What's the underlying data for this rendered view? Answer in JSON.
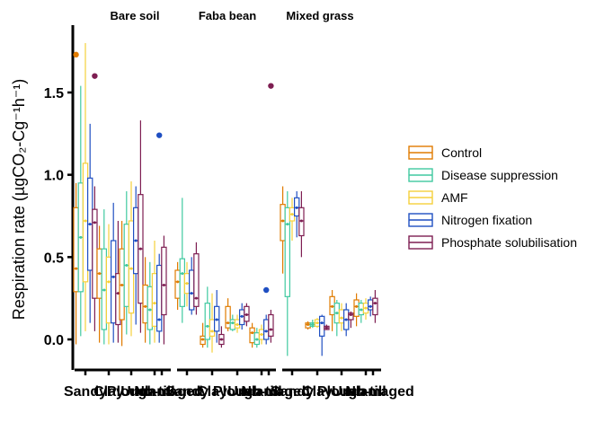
{
  "chart_data": {
    "type": "box",
    "ylabel": "Respiration rate (µgCO₂-Cg⁻¹h⁻¹)",
    "ylim": [
      -0.2,
      1.93
    ],
    "yticks": [
      0.0,
      0.5,
      1.0,
      1.5
    ],
    "ytick_labels": [
      "0.0",
      "0.5",
      "1.0",
      "1.5"
    ],
    "facets": [
      "Bare soil",
      "Faba bean",
      "Mixed grass"
    ],
    "categories": [
      "Sandy",
      "Clay",
      "Plough",
      "No-till",
      "Undamaged"
    ],
    "category_label_text": [
      [
        "Sandy",
        "Clay",
        "Plough",
        "No-till",
        "Undamaged"
      ],
      [
        "Sandy",
        "Clay",
        "Plough",
        "No-till",
        "Undamaged"
      ],
      [
        "Sandy",
        "Clay",
        "Plough",
        "No-till",
        "Undamaged"
      ]
    ],
    "legend_position": "right",
    "series": [
      {
        "name": "Control",
        "color": "#E07B00"
      },
      {
        "name": "Disease suppression",
        "color": "#40C9A0"
      },
      {
        "name": "AMF",
        "color": "#F5D03B"
      },
      {
        "name": "Nitrogen fixation",
        "color": "#1F4FC2"
      },
      {
        "name": "Phosphate solubilisation",
        "color": "#7E1E52"
      }
    ],
    "boxes": [
      [
        [
          {
            "q1": 0.29,
            "med": 0.43,
            "q3": 0.8,
            "lo": -0.03,
            "hi": 0.95,
            "mean": 0.43,
            "out": [
              1.73
            ]
          },
          {
            "q1": 0.29,
            "med": 0.62,
            "q3": 0.95,
            "lo": 0.02,
            "hi": 1.54,
            "mean": 0.62,
            "out": []
          },
          {
            "q1": 0.35,
            "med": 0.72,
            "q3": 1.07,
            "lo": 0.05,
            "hi": 1.8,
            "mean": 0.72,
            "out": []
          },
          {
            "q1": 0.42,
            "med": 0.7,
            "q3": 0.98,
            "lo": 0.1,
            "hi": 1.31,
            "mean": 0.7,
            "out": []
          },
          {
            "q1": 0.25,
            "med": 0.71,
            "q3": 0.79,
            "lo": 0.05,
            "hi": 0.93,
            "mean": 0.71,
            "out": [
              1.6
            ]
          }
        ],
        [
          {
            "q1": 0.25,
            "med": 0.4,
            "q3": 0.55,
            "lo": -0.02,
            "hi": 0.69,
            "mean": 0.4,
            "out": []
          },
          {
            "q1": 0.06,
            "med": 0.3,
            "q3": 0.55,
            "lo": -0.03,
            "hi": 0.79,
            "mean": 0.3,
            "out": []
          },
          {
            "q1": 0.1,
            "med": 0.35,
            "q3": 0.5,
            "lo": -0.03,
            "hi": 0.7,
            "mean": 0.35,
            "out": []
          },
          {
            "q1": 0.1,
            "med": 0.38,
            "q3": 0.6,
            "lo": -0.02,
            "hi": 0.83,
            "mean": 0.38,
            "out": []
          },
          {
            "q1": 0.09,
            "med": 0.28,
            "q3": 0.4,
            "lo": -0.02,
            "hi": 0.72,
            "mean": 0.28,
            "out": []
          }
        ],
        [
          {
            "q1": 0.12,
            "med": 0.33,
            "q3": 0.55,
            "lo": -0.04,
            "hi": 0.72,
            "mean": 0.33,
            "out": []
          },
          {
            "q1": 0.2,
            "med": 0.45,
            "q3": 0.7,
            "lo": 0.03,
            "hi": 0.9,
            "mean": 0.45,
            "out": []
          },
          {
            "q1": 0.16,
            "med": 0.43,
            "q3": 0.72,
            "lo": 0.02,
            "hi": 0.96,
            "mean": 0.43,
            "out": []
          },
          {
            "q1": 0.4,
            "med": 0.6,
            "q3": 0.8,
            "lo": 0.09,
            "hi": 0.93,
            "mean": 0.6,
            "out": []
          },
          {
            "q1": 0.22,
            "med": 0.55,
            "q3": 0.88,
            "lo": 0.04,
            "hi": 1.33,
            "mean": 0.55,
            "out": []
          }
        ],
        [
          {
            "q1": 0.1,
            "med": 0.2,
            "q3": 0.33,
            "lo": -0.02,
            "hi": 0.5,
            "mean": 0.2,
            "out": []
          },
          {
            "q1": 0.06,
            "med": 0.18,
            "q3": 0.32,
            "lo": -0.03,
            "hi": 0.47,
            "mean": 0.18,
            "out": []
          },
          {
            "q1": 0.08,
            "med": 0.22,
            "q3": 0.4,
            "lo": -0.02,
            "hi": 0.6,
            "mean": 0.22,
            "out": []
          },
          {
            "q1": 0.05,
            "med": 0.12,
            "q3": 0.45,
            "lo": -0.02,
            "hi": 0.52,
            "mean": 0.12,
            "out": [
              1.24
            ]
          },
          {
            "q1": 0.15,
            "med": 0.33,
            "q3": 0.56,
            "lo": -0.03,
            "hi": 0.63,
            "mean": 0.33,
            "out": []
          }
        ],
        [
          {
            "q1": 0.0,
            "med": 0.0,
            "q3": 0.0,
            "lo": 0.0,
            "hi": 0.0,
            "mean": 0.0,
            "out": []
          },
          {
            "q1": 0.0,
            "med": 0.0,
            "q3": 0.0,
            "lo": 0.0,
            "hi": 0.0,
            "mean": 0.0,
            "out": []
          },
          {
            "q1": 0.0,
            "med": 0.0,
            "q3": 0.0,
            "lo": 0.0,
            "hi": 0.0,
            "mean": 0.0,
            "out": []
          },
          {
            "q1": 0.0,
            "med": 0.0,
            "q3": 0.0,
            "lo": 0.0,
            "hi": 0.0,
            "mean": 0.0,
            "out": []
          },
          {
            "q1": 0.0,
            "med": 0.0,
            "q3": 0.0,
            "lo": 0.0,
            "hi": 0.0,
            "mean": 0.0,
            "out": []
          }
        ]
      ],
      [
        [
          {
            "q1": 0.25,
            "med": 0.35,
            "q3": 0.42,
            "lo": 0.18,
            "hi": 0.47,
            "mean": 0.35,
            "out": []
          },
          {
            "q1": 0.2,
            "med": 0.4,
            "q3": 0.49,
            "lo": 0.1,
            "hi": 0.86,
            "mean": 0.4,
            "out": []
          },
          {
            "q1": 0.28,
            "med": 0.34,
            "q3": 0.4,
            "lo": 0.2,
            "hi": 0.47,
            "mean": 0.34,
            "out": []
          },
          {
            "q1": 0.18,
            "med": 0.28,
            "q3": 0.42,
            "lo": 0.15,
            "hi": 0.5,
            "mean": 0.28,
            "out": []
          },
          {
            "q1": 0.2,
            "med": 0.25,
            "q3": 0.52,
            "lo": 0.15,
            "hi": 0.59,
            "mean": 0.25,
            "out": []
          }
        ],
        [
          {
            "q1": -0.03,
            "med": 0.0,
            "q3": 0.02,
            "lo": -0.05,
            "hi": 0.1,
            "mean": 0.0,
            "out": []
          },
          {
            "q1": 0.0,
            "med": 0.08,
            "q3": 0.22,
            "lo": -0.05,
            "hi": 0.32,
            "mean": 0.08,
            "out": []
          },
          {
            "q1": 0.02,
            "med": 0.05,
            "q3": 0.12,
            "lo": -0.08,
            "hi": 0.28,
            "mean": 0.05,
            "out": []
          },
          {
            "q1": 0.05,
            "med": 0.12,
            "q3": 0.2,
            "lo": -0.02,
            "hi": 0.3,
            "mean": 0.12,
            "out": []
          },
          {
            "q1": -0.03,
            "med": 0.0,
            "q3": 0.03,
            "lo": -0.05,
            "hi": 0.08,
            "mean": 0.0,
            "out": []
          }
        ],
        [
          {
            "q1": 0.07,
            "med": 0.1,
            "q3": 0.2,
            "lo": 0.05,
            "hi": 0.25,
            "mean": 0.1,
            "out": []
          },
          {
            "q1": 0.06,
            "med": 0.1,
            "q3": 0.12,
            "lo": 0.05,
            "hi": 0.15,
            "mean": 0.1,
            "out": []
          },
          {
            "q1": 0.07,
            "med": 0.09,
            "q3": 0.12,
            "lo": 0.04,
            "hi": 0.15,
            "mean": 0.09,
            "out": []
          },
          {
            "q1": 0.09,
            "med": 0.14,
            "q3": 0.18,
            "lo": 0.06,
            "hi": 0.22,
            "mean": 0.14,
            "out": []
          },
          {
            "q1": 0.11,
            "med": 0.15,
            "q3": 0.2,
            "lo": 0.08,
            "hi": 0.22,
            "mean": 0.15,
            "out": []
          }
        ],
        [
          {
            "q1": -0.02,
            "med": 0.04,
            "q3": 0.07,
            "lo": -0.05,
            "hi": 0.1,
            "mean": 0.04,
            "out": []
          },
          {
            "q1": -0.03,
            "med": 0.0,
            "q3": 0.04,
            "lo": -0.05,
            "hi": 0.07,
            "mean": 0.0,
            "out": []
          },
          {
            "q1": 0.0,
            "med": 0.03,
            "q3": 0.06,
            "lo": -0.03,
            "hi": 0.09,
            "mean": 0.03,
            "out": []
          },
          {
            "q1": 0.0,
            "med": 0.05,
            "q3": 0.12,
            "lo": -0.03,
            "hi": 0.15,
            "mean": 0.05,
            "out": [
              0.3
            ]
          },
          {
            "q1": 0.02,
            "med": 0.06,
            "q3": 0.15,
            "lo": -0.02,
            "hi": 0.18,
            "mean": 0.06,
            "out": [
              1.54
            ]
          }
        ],
        [
          {
            "q1": 0.0,
            "med": 0.0,
            "q3": 0.0,
            "lo": 0.0,
            "hi": 0.0,
            "mean": 0.0,
            "out": []
          },
          {
            "q1": 0.0,
            "med": 0.0,
            "q3": 0.0,
            "lo": 0.0,
            "hi": 0.0,
            "mean": 0.0,
            "out": []
          },
          {
            "q1": 0.0,
            "med": 0.0,
            "q3": 0.0,
            "lo": 0.0,
            "hi": 0.0,
            "mean": 0.0,
            "out": []
          },
          {
            "q1": 0.0,
            "med": 0.0,
            "q3": 0.0,
            "lo": 0.0,
            "hi": 0.0,
            "mean": 0.0,
            "out": []
          },
          {
            "q1": 0.0,
            "med": 0.0,
            "q3": 0.0,
            "lo": 0.0,
            "hi": 0.0,
            "mean": 0.0,
            "out": []
          }
        ]
      ],
      [
        [
          {
            "q1": 0.6,
            "med": 0.72,
            "q3": 0.82,
            "lo": 0.4,
            "hi": 0.93,
            "mean": 0.72,
            "out": []
          },
          {
            "q1": 0.26,
            "med": 0.7,
            "q3": 0.8,
            "lo": -0.1,
            "hi": 0.9,
            "mean": 0.7,
            "out": []
          },
          {
            "q1": 0.72,
            "med": 0.76,
            "q3": 0.8,
            "lo": 0.6,
            "hi": 0.86,
            "mean": 0.76,
            "out": []
          },
          {
            "q1": 0.75,
            "med": 0.8,
            "q3": 0.86,
            "lo": 0.62,
            "hi": 0.9,
            "mean": 0.8,
            "out": []
          },
          {
            "q1": 0.63,
            "med": 0.72,
            "q3": 0.8,
            "lo": 0.5,
            "hi": 0.9,
            "mean": 0.72,
            "out": []
          }
        ],
        [
          {
            "q1": 0.07,
            "med": 0.09,
            "q3": 0.1,
            "lo": 0.06,
            "hi": 0.11,
            "mean": 0.09,
            "out": []
          },
          {
            "q1": 0.08,
            "med": 0.09,
            "q3": 0.1,
            "lo": 0.07,
            "hi": 0.12,
            "mean": 0.09,
            "out": []
          },
          {
            "q1": 0.08,
            "med": 0.1,
            "q3": 0.12,
            "lo": 0.07,
            "hi": 0.13,
            "mean": 0.1,
            "out": []
          },
          {
            "q1": 0.02,
            "med": 0.1,
            "q3": 0.14,
            "lo": -0.1,
            "hi": 0.15,
            "mean": 0.1,
            "out": []
          },
          {
            "q1": 0.06,
            "med": 0.07,
            "q3": 0.08,
            "lo": 0.06,
            "hi": 0.09,
            "mean": 0.07,
            "out": []
          }
        ],
        [
          {
            "q1": 0.15,
            "med": 0.2,
            "q3": 0.26,
            "lo": 0.05,
            "hi": 0.3,
            "mean": 0.2,
            "out": []
          },
          {
            "q1": 0.1,
            "med": 0.16,
            "q3": 0.22,
            "lo": 0.02,
            "hi": 0.24,
            "mean": 0.16,
            "out": []
          },
          {
            "q1": 0.1,
            "med": 0.13,
            "q3": 0.18,
            "lo": 0.05,
            "hi": 0.22,
            "mean": 0.13,
            "out": []
          },
          {
            "q1": 0.06,
            "med": 0.12,
            "q3": 0.18,
            "lo": 0.02,
            "hi": 0.22,
            "mean": 0.12,
            "out": []
          },
          {
            "q1": 0.12,
            "med": 0.15,
            "q3": 0.16,
            "lo": 0.07,
            "hi": 0.17,
            "mean": 0.15,
            "out": []
          }
        ],
        [
          {
            "q1": 0.14,
            "med": 0.2,
            "q3": 0.24,
            "lo": 0.08,
            "hi": 0.28,
            "mean": 0.2,
            "out": []
          },
          {
            "q1": 0.15,
            "med": 0.18,
            "q3": 0.22,
            "lo": 0.1,
            "hi": 0.24,
            "mean": 0.18,
            "out": []
          },
          {
            "q1": 0.16,
            "med": 0.19,
            "q3": 0.22,
            "lo": 0.12,
            "hi": 0.25,
            "mean": 0.19,
            "out": []
          },
          {
            "q1": 0.18,
            "med": 0.2,
            "q3": 0.24,
            "lo": 0.14,
            "hi": 0.26,
            "mean": 0.2,
            "out": []
          },
          {
            "q1": 0.15,
            "med": 0.22,
            "q3": 0.25,
            "lo": 0.1,
            "hi": 0.3,
            "mean": 0.22,
            "out": []
          }
        ],
        [
          {
            "q1": 0.0,
            "med": 0.0,
            "q3": 0.0,
            "lo": 0.0,
            "hi": 0.0,
            "mean": 0.0,
            "out": []
          },
          {
            "q1": 0.0,
            "med": 0.0,
            "q3": 0.0,
            "lo": 0.0,
            "hi": 0.0,
            "mean": 0.0,
            "out": []
          },
          {
            "q1": 0.0,
            "med": 0.0,
            "q3": 0.0,
            "lo": 0.0,
            "hi": 0.0,
            "mean": 0.0,
            "out": []
          },
          {
            "q1": 0.0,
            "med": 0.0,
            "q3": 0.0,
            "lo": 0.0,
            "hi": 0.0,
            "mean": 0.0,
            "out": []
          },
          {
            "q1": 0.0,
            "med": 0.0,
            "q3": 0.0,
            "lo": 0.0,
            "hi": 0.0,
            "mean": 0.0,
            "out": []
          }
        ]
      ]
    ]
  }
}
